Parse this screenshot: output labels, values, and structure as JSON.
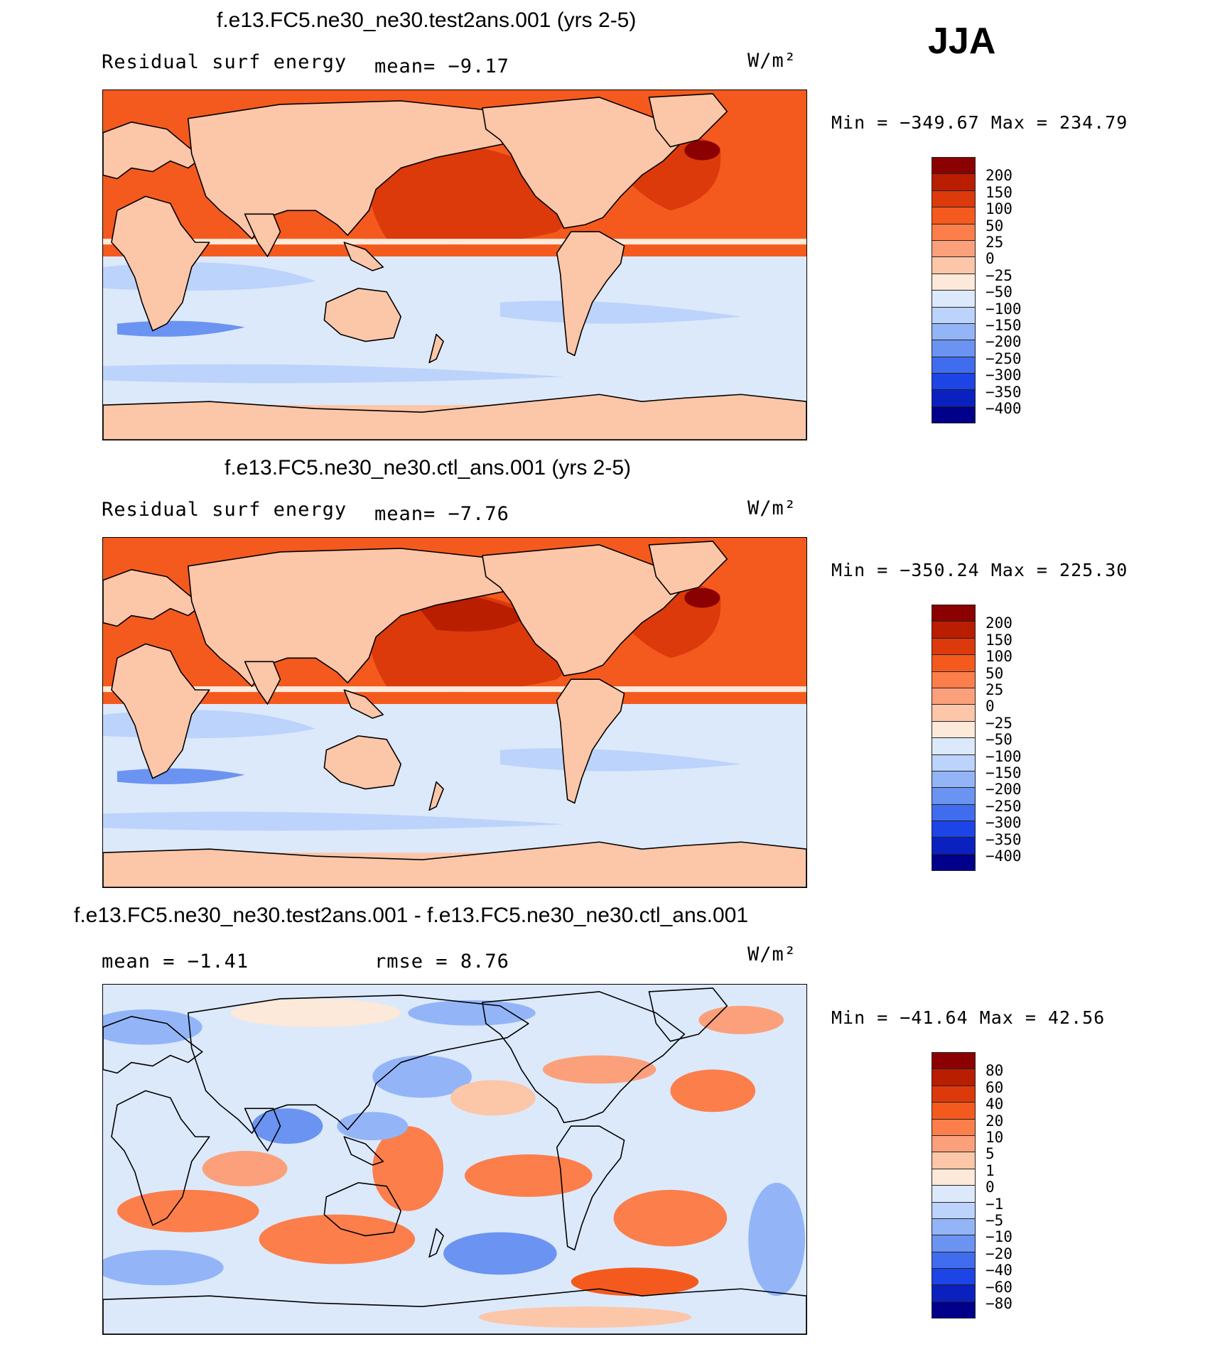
{
  "season": "JJA",
  "panels": [
    {
      "title": "f.e13.FC5.ne30_ne30.test2ans.001 (yrs 2-5)",
      "left_label": "Residual surf energy",
      "mid_label": "mean=",
      "mid_value": "−9.17",
      "units": "W/m²",
      "minmax": "Min = −349.67 Max = 234.79",
      "scheme": "abs"
    },
    {
      "title": "f.e13.FC5.ne30_ne30.ctl_ans.001 (yrs 2-5)",
      "left_label": "Residual surf energy",
      "mid_label": "mean=",
      "mid_value": "−7.76",
      "units": "W/m²",
      "minmax": "Min = −350.24 Max = 225.30",
      "scheme": "abs"
    },
    {
      "title": "f.e13.FC5.ne30_ne30.test2ans.001 - f.e13.FC5.ne30_ne30.ctl_ans.001",
      "left_label": "mean =",
      "left_value": "−1.41",
      "mid_label": "rmse =",
      "mid_value": "8.76",
      "units": "W/m²",
      "minmax": "Min = −41.64 Max =  42.56",
      "scheme": "diff"
    }
  ],
  "colorbars": {
    "abs_levels": [
      "200",
      "150",
      "100",
      "50",
      "25",
      "0",
      "−25",
      "−50",
      "−100",
      "−150",
      "−200",
      "−250",
      "−300",
      "−350",
      "−400"
    ],
    "diff_levels": [
      "80",
      "60",
      "40",
      "20",
      "10",
      "5",
      "1",
      "0",
      "−1",
      "−5",
      "−10",
      "−20",
      "−40",
      "−60",
      "−80"
    ],
    "colors": [
      "#8b0000",
      "#b91e00",
      "#dc3a0b",
      "#f45a1e",
      "#fb7e4b",
      "#fba07a",
      "#fcc6a8",
      "#fde9d9",
      "#dce9fb",
      "#bcd3fb",
      "#93b5f8",
      "#6b93f2",
      "#3f6ded",
      "#1c44e6",
      "#0b21bf",
      "#00008b"
    ]
  }
}
